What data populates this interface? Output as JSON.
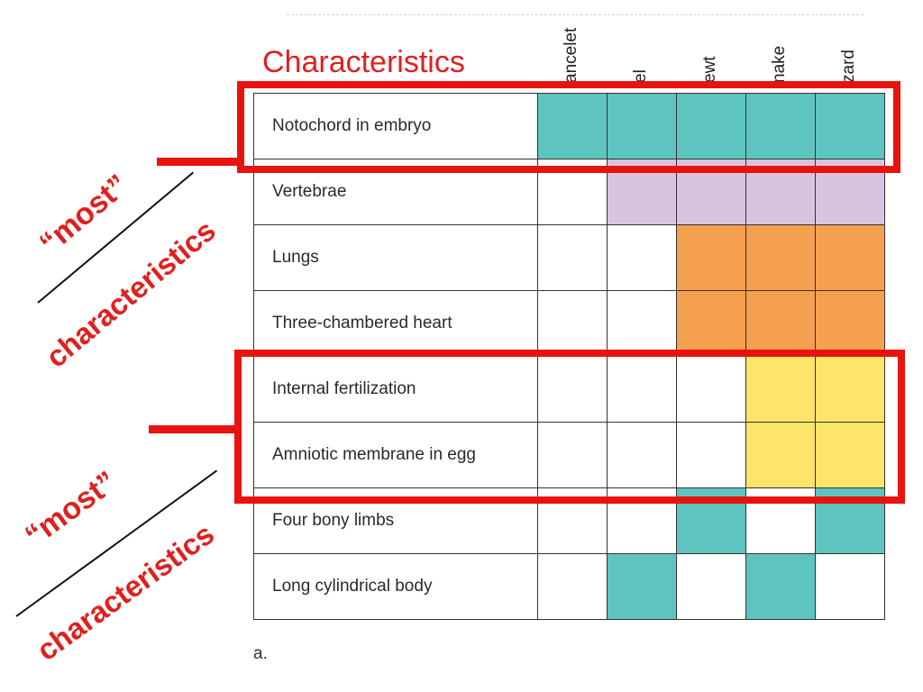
{
  "title": "Characteristics",
  "columns": [
    "ancelet",
    "el",
    "ewt",
    "nake",
    "zard"
  ],
  "rows": [
    {
      "label": "Notochord in embryo",
      "cells": [
        "teal",
        "teal",
        "teal",
        "teal",
        "teal"
      ]
    },
    {
      "label": "Vertebrae",
      "cells": [
        "white",
        "lavender",
        "lavender",
        "lavender",
        "lavender"
      ]
    },
    {
      "label": "Lungs",
      "cells": [
        "white",
        "white",
        "orange",
        "orange",
        "orange"
      ]
    },
    {
      "label": "Three-chambered heart",
      "cells": [
        "white",
        "white",
        "orange",
        "orange",
        "orange"
      ]
    },
    {
      "label": "Internal fertilization",
      "cells": [
        "white",
        "white",
        "white",
        "yellow",
        "yellow"
      ]
    },
    {
      "label": "Amniotic membrane in egg",
      "cells": [
        "white",
        "white",
        "white",
        "yellow",
        "yellow"
      ]
    },
    {
      "label": "Four bony limbs",
      "cells": [
        "white",
        "white",
        "teal",
        "white",
        "teal"
      ]
    },
    {
      "label": "Long cylindrical body",
      "cells": [
        "white",
        "teal",
        "white",
        "teal",
        "white"
      ]
    }
  ],
  "colors": {
    "teal": "#5ec4bf",
    "lavender": "#d8c4e0",
    "orange": "#f5a04e",
    "yellow": "#fde46a",
    "white": "#ffffff",
    "annotation_red": "#e8130f"
  },
  "caption": "a.",
  "annotations": {
    "upper": {
      "quote": "“most”",
      "word": "characteristics"
    },
    "lower": {
      "quote": "“most”",
      "word": "characteristics"
    }
  }
}
